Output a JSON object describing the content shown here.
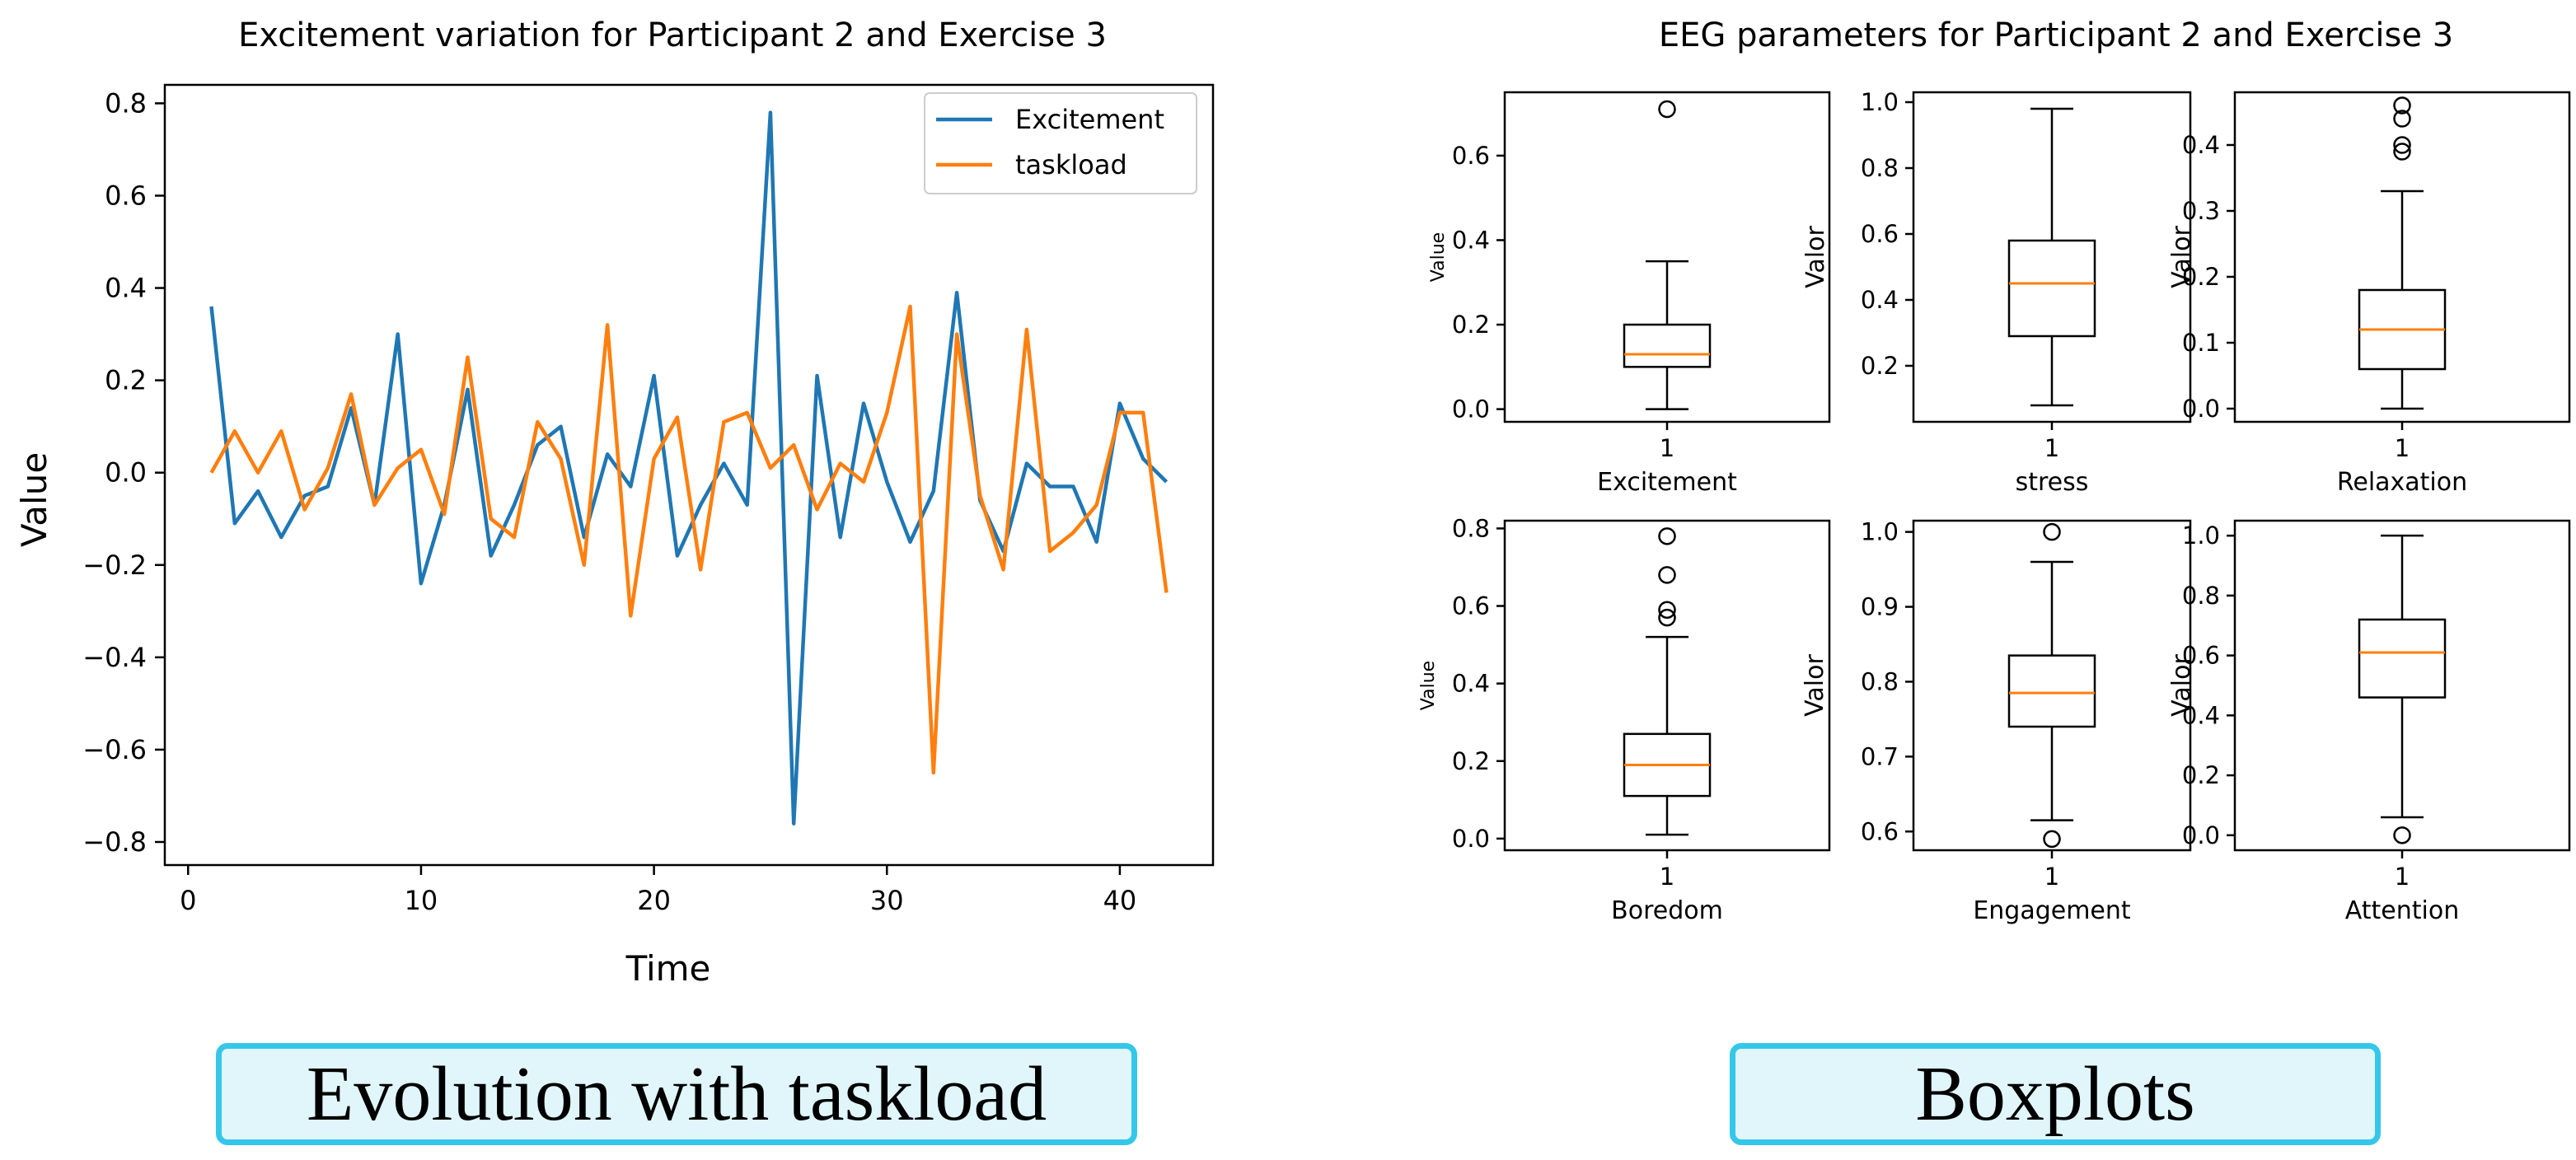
{
  "colors": {
    "excitement": "#1f77b4",
    "taskload": "#ff7f0e",
    "median": "#ff7f0e",
    "axis": "#000000",
    "caption_border": "#35c7ea",
    "caption_fill": "#e0f6fb"
  },
  "captions": {
    "left": "Evolution with taskload",
    "right": "Boxplots"
  },
  "chart_data": [
    {
      "type": "line",
      "title": "Excitement variation for Participant 2 and Exercise 3",
      "xlabel": "Time",
      "ylabel": "Value",
      "xlim": [
        -1,
        44
      ],
      "ylim": [
        -0.85,
        0.84
      ],
      "xticks": [
        0,
        10,
        20,
        30,
        40
      ],
      "xtick_labels": [
        "0",
        "10",
        "20",
        "30",
        "40"
      ],
      "yticks": [
        -0.8,
        -0.6,
        -0.4,
        -0.2,
        0.0,
        0.2,
        0.4,
        0.6,
        0.8
      ],
      "ytick_labels": [
        "−0.8",
        "−0.6",
        "−0.4",
        "−0.2",
        "0.0",
        "0.2",
        "0.4",
        "0.6",
        "0.8"
      ],
      "legend_position": "top-right",
      "x": [
        1,
        2,
        3,
        4,
        5,
        6,
        7,
        8,
        9,
        10,
        11,
        12,
        13,
        14,
        15,
        16,
        17,
        18,
        19,
        20,
        21,
        22,
        23,
        24,
        25,
        26,
        27,
        28,
        29,
        30,
        31,
        32,
        33,
        34,
        35,
        36,
        37,
        38,
        39,
        40,
        41,
        42
      ],
      "series": [
        {
          "name": "Excitement",
          "values": [
            0.36,
            -0.11,
            -0.04,
            -0.14,
            -0.05,
            -0.03,
            0.14,
            -0.07,
            0.3,
            -0.24,
            -0.07,
            0.18,
            -0.18,
            -0.07,
            0.06,
            0.1,
            -0.14,
            0.04,
            -0.03,
            0.21,
            -0.18,
            -0.07,
            0.02,
            -0.07,
            0.78,
            -0.76,
            0.21,
            -0.14,
            0.15,
            -0.02,
            -0.15,
            -0.04,
            0.39,
            -0.06,
            -0.17,
            0.02,
            -0.03,
            -0.03,
            -0.15,
            0.15,
            0.03,
            -0.02
          ]
        },
        {
          "name": "taskload",
          "values": [
            0.0,
            0.09,
            0.0,
            0.09,
            -0.08,
            0.01,
            0.17,
            -0.07,
            0.01,
            0.05,
            -0.09,
            0.25,
            -0.1,
            -0.14,
            0.11,
            0.03,
            -0.2,
            0.32,
            -0.31,
            0.03,
            0.12,
            -0.21,
            0.11,
            0.13,
            0.01,
            0.06,
            -0.08,
            0.02,
            -0.02,
            0.13,
            0.36,
            -0.65,
            0.3,
            -0.05,
            -0.21,
            0.31,
            -0.17,
            -0.13,
            -0.07,
            0.13,
            0.13,
            -0.26
          ]
        }
      ]
    },
    {
      "type": "boxplot",
      "title": "EEG parameters for Participant 2 and Exercise 3",
      "panels": [
        {
          "name": "Excitement",
          "xlabel": "Excitement",
          "ylabel": "Value",
          "ylim": [
            -0.03,
            0.75
          ],
          "yticks": [
            0.0,
            0.2,
            0.4,
            0.6
          ],
          "ytick_labels": [
            "0.0",
            "0.2",
            "0.4",
            "0.6"
          ],
          "category": "1",
          "min": 0.0,
          "q1": 0.1,
          "median": 0.13,
          "q3": 0.2,
          "max": 0.35,
          "outliers": [
            0.71
          ]
        },
        {
          "name": "stress",
          "xlabel": "stress",
          "ylabel": "Valor",
          "ylim": [
            0.03,
            1.03
          ],
          "yticks": [
            0.2,
            0.4,
            0.6,
            0.8,
            1.0
          ],
          "ytick_labels": [
            "0.2",
            "0.4",
            "0.6",
            "0.8",
            "1.0"
          ],
          "category": "1",
          "min": 0.08,
          "q1": 0.29,
          "median": 0.45,
          "q3": 0.58,
          "max": 0.98,
          "outliers": []
        },
        {
          "name": "Relaxation",
          "xlabel": "Relaxation",
          "ylabel": "Valor",
          "ylim": [
            -0.02,
            0.48
          ],
          "yticks": [
            0.0,
            0.1,
            0.2,
            0.3,
            0.4
          ],
          "ytick_labels": [
            "0.0",
            "0.1",
            "0.2",
            "0.3",
            "0.4"
          ],
          "category": "1",
          "min": 0.0,
          "q1": 0.06,
          "median": 0.12,
          "q3": 0.18,
          "max": 0.33,
          "outliers": [
            0.39,
            0.4,
            0.44,
            0.46
          ]
        },
        {
          "name": "Boredom",
          "xlabel": "Boredom",
          "ylabel": "Value",
          "ylim": [
            -0.03,
            0.82
          ],
          "yticks": [
            0.0,
            0.2,
            0.4,
            0.6,
            0.8
          ],
          "ytick_labels": [
            "0.0",
            "0.2",
            "0.4",
            "0.6",
            "0.8"
          ],
          "category": "1",
          "min": 0.01,
          "q1": 0.11,
          "median": 0.19,
          "q3": 0.27,
          "max": 0.52,
          "outliers": [
            0.57,
            0.59,
            0.68,
            0.78
          ]
        },
        {
          "name": "Engagement",
          "xlabel": "Engagement",
          "ylabel": "Valor",
          "ylim": [
            0.575,
            1.015
          ],
          "yticks": [
            0.6,
            0.7,
            0.8,
            0.9,
            1.0
          ],
          "ytick_labels": [
            "0.6",
            "0.7",
            "0.8",
            "0.9",
            "1.0"
          ],
          "category": "1",
          "min": 0.615,
          "q1": 0.74,
          "median": 0.785,
          "q3": 0.835,
          "max": 0.96,
          "outliers": [
            0.59,
            1.0
          ]
        },
        {
          "name": "Attention",
          "xlabel": "Attention",
          "ylabel": "Valor",
          "ylim": [
            -0.05,
            1.05
          ],
          "yticks": [
            0.0,
            0.2,
            0.4,
            0.6,
            0.8,
            1.0
          ],
          "ytick_labels": [
            "0.0",
            "0.2",
            "0.4",
            "0.6",
            "0.8",
            "1.0"
          ],
          "category": "1",
          "min": 0.06,
          "q1": 0.46,
          "median": 0.61,
          "q3": 0.72,
          "max": 1.0,
          "outliers": [
            0.0
          ]
        }
      ]
    }
  ]
}
